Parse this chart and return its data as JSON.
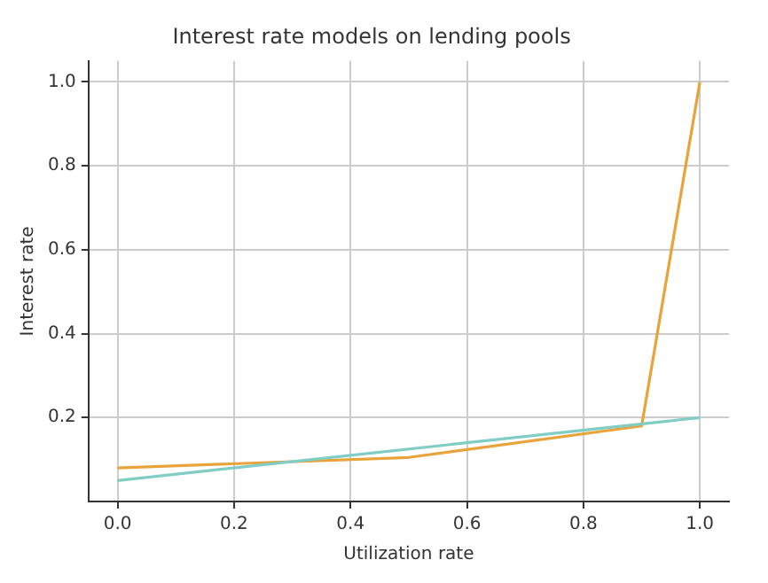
{
  "chart_data": {
    "type": "line",
    "title": "Interest rate models on lending pools",
    "xlabel": "Utilization rate",
    "ylabel": "Interest rate",
    "series": [
      {
        "color": "#7fcdc4",
        "x": [
          0,
          1
        ],
        "values": [
          0.05,
          0.2
        ]
      },
      {
        "color": "#e8a33a",
        "x": [
          0,
          0.5,
          0.9,
          1
        ],
        "values": [
          0.08,
          0.105,
          0.18,
          1.0
        ]
      }
    ],
    "xlim": [
      -0.05,
      1.05
    ],
    "xticks": [
      {
        "value": 0,
        "label": "0.0"
      },
      0.2,
      0.4,
      0.6,
      0.8,
      {
        "value": 1,
        "label": "1.0"
      }
    ],
    "ylim": [
      0,
      1.05
    ],
    "yticks": [
      0.2,
      0.4,
      0.6,
      0.8,
      {
        "value": 1,
        "label": "1.0"
      }
    ],
    "grid": true,
    "legend": false,
    "marker": "none",
    "line_style": "solid"
  }
}
